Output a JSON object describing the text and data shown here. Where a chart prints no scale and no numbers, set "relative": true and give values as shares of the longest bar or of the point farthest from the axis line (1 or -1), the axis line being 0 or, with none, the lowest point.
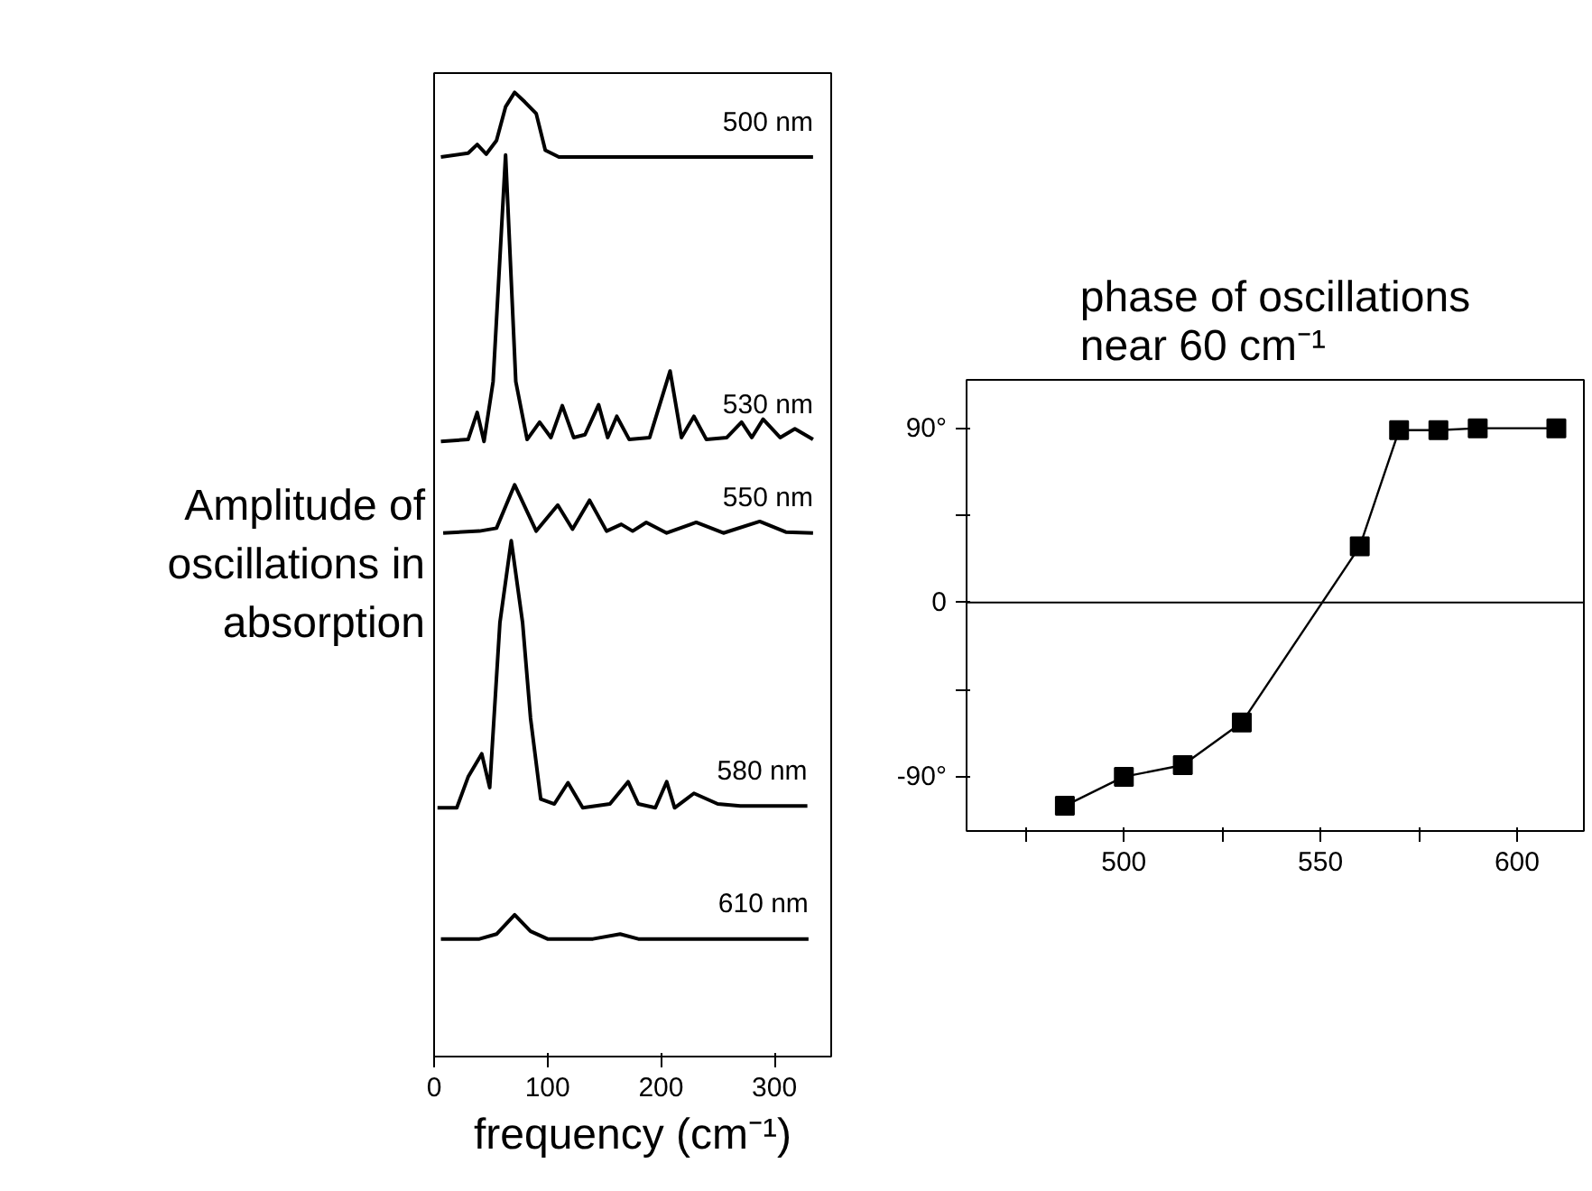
{
  "chart_data": [
    {
      "type": "line",
      "relative": true,
      "ylabel": "Amplitude of oscillations in absorption",
      "xlabel": "frequency (cm⁻¹)",
      "xlim": [
        0,
        350
      ],
      "xticks": [
        0,
        100,
        200,
        300
      ],
      "tick_labels": "x",
      "grid": false,
      "series": [
        {
          "name": "500 nm",
          "color": "#000000",
          "x": [
            6,
            30,
            38,
            46,
            55,
            63,
            71,
            80,
            90,
            98,
            110,
            150,
            200,
            250,
            300,
            334
          ],
          "values": [
            0.933,
            0.937,
            0.946,
            0.936,
            0.95,
            0.985,
            1.0,
            0.99,
            0.978,
            0.94,
            0.933,
            0.933,
            0.933,
            0.933,
            0.933,
            0.933
          ]
        },
        {
          "name": "530 nm",
          "color": "#000000",
          "x": [
            6,
            30,
            38,
            44,
            52,
            63,
            72,
            82,
            93,
            103,
            113,
            123,
            133,
            145,
            153,
            161,
            172,
            190,
            208,
            218,
            229,
            240,
            258,
            271,
            280,
            290,
            305,
            318,
            334
          ],
          "values": [
            0.638,
            0.64,
            0.668,
            0.638,
            0.7,
            0.935,
            0.7,
            0.64,
            0.658,
            0.642,
            0.675,
            0.642,
            0.645,
            0.676,
            0.642,
            0.664,
            0.64,
            0.642,
            0.711,
            0.642,
            0.664,
            0.64,
            0.642,
            0.658,
            0.642,
            0.661,
            0.642,
            0.651,
            0.64
          ]
        },
        {
          "name": "550 nm",
          "color": "#000000",
          "x": [
            8,
            40,
            55,
            71,
            90,
            109,
            122,
            137,
            152,
            165,
            175,
            187,
            205,
            231,
            255,
            287,
            310,
            334
          ],
          "values": [
            0.543,
            0.545,
            0.548,
            0.593,
            0.545,
            0.572,
            0.547,
            0.577,
            0.545,
            0.552,
            0.545,
            0.554,
            0.543,
            0.554,
            0.543,
            0.555,
            0.544,
            0.543
          ]
        },
        {
          "name": "580 nm",
          "color": "#000000",
          "x": [
            3,
            20,
            30,
            42,
            49,
            58,
            68,
            78,
            85,
            94,
            106,
            118,
            131,
            155,
            171,
            180,
            195,
            205,
            212,
            229,
            250,
            270,
            300,
            329
          ],
          "values": [
            0.258,
            0.258,
            0.29,
            0.314,
            0.279,
            0.45,
            0.535,
            0.45,
            0.351,
            0.267,
            0.262,
            0.284,
            0.258,
            0.262,
            0.285,
            0.262,
            0.258,
            0.285,
            0.258,
            0.273,
            0.262,
            0.26,
            0.26,
            0.26
          ]
        },
        {
          "name": "610 nm",
          "color": "#000000",
          "x": [
            6,
            40,
            55,
            71,
            85,
            100,
            140,
            164,
            180,
            250,
            330
          ],
          "values": [
            0.122,
            0.122,
            0.127,
            0.147,
            0.13,
            0.122,
            0.122,
            0.127,
            0.122,
            0.122,
            0.122
          ]
        }
      ]
    },
    {
      "type": "line",
      "title": "phase of oscillations near 60 cm⁻¹",
      "xlim": [
        460,
        617
      ],
      "ylim": [
        -118,
        115
      ],
      "xticks": [
        {
          "value": 475,
          "label": null
        },
        500,
        {
          "value": 525,
          "label": null
        },
        550,
        {
          "value": 575,
          "label": null
        },
        600
      ],
      "yticks": [
        {
          "value": -90,
          "label": "-90°"
        },
        {
          "value": -45,
          "label": null
        },
        0,
        {
          "value": 45,
          "label": null
        },
        {
          "value": 90,
          "label": "90°"
        }
      ],
      "grid": false,
      "marker": "square",
      "line_style": "solid",
      "ref_lines": [
        {
          "axis": "y",
          "value": 0,
          "label": null,
          "color": "#000000"
        }
      ],
      "series": [
        {
          "color": "#000000",
          "x": [
            485,
            500,
            515,
            530,
            560,
            570,
            580,
            590,
            610
          ],
          "values": [
            -105,
            -90,
            -84,
            -62,
            29,
            89,
            89,
            90,
            90
          ]
        }
      ]
    }
  ]
}
